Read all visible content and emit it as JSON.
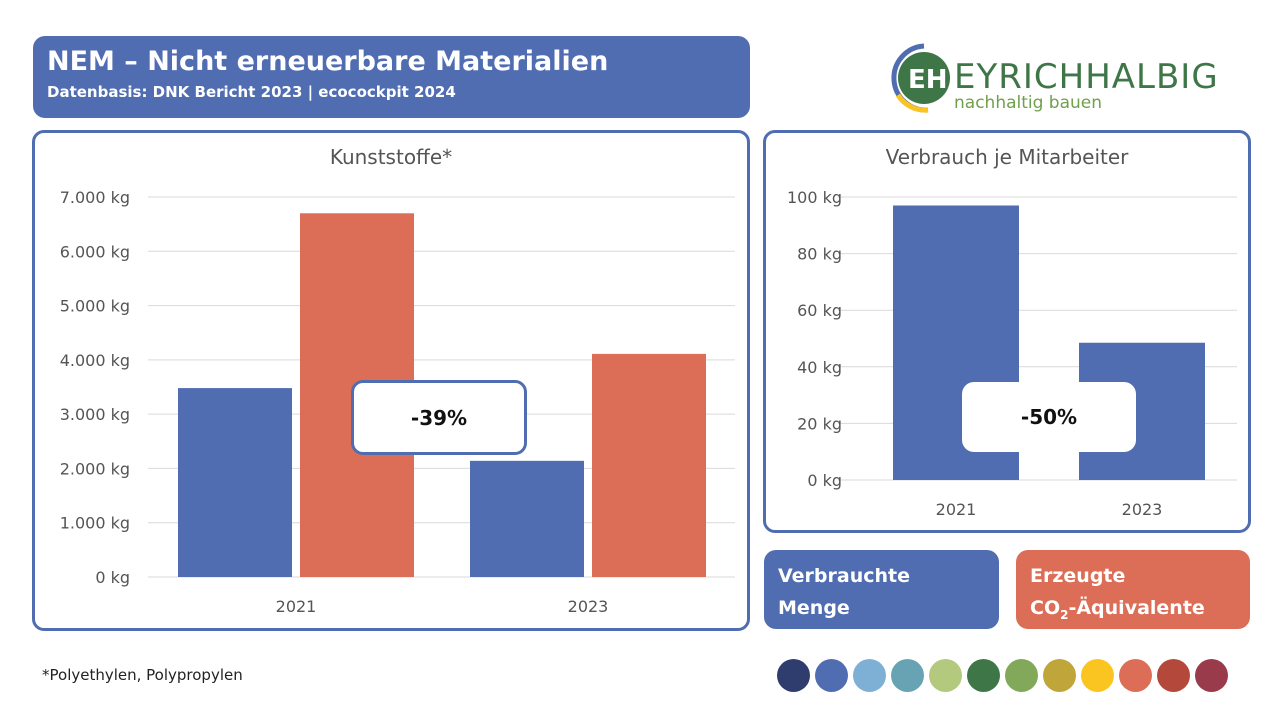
{
  "header": {
    "title": "NEM – Nicht erneuerbare Materialien",
    "subtitle": "Datenbasis: DNK Bericht 2023 | ecocockpit 2024"
  },
  "logo": {
    "text": "EYRICHHALBIG",
    "tagline": "nachhaltig bauen",
    "mark": "EH"
  },
  "colors": {
    "blue": "#4f6db0",
    "orange": "#dc6e57"
  },
  "chart_data": [
    {
      "type": "bar",
      "title": "Kunststoffe*",
      "categories": [
        "2021",
        "2023"
      ],
      "series": [
        {
          "name": "Verbrauchte Menge",
          "values": [
            3480,
            2140
          ]
        },
        {
          "name": "Erzeugte CO2-Äquivalente",
          "values": [
            6700,
            4110
          ]
        }
      ],
      "ylim": [
        0,
        7000
      ],
      "yticks": [
        "0 kg",
        "1.000 kg",
        "2.000 kg",
        "3.000 kg",
        "4.000 kg",
        "5.000 kg",
        "6.000 kg",
        "7.000 kg"
      ],
      "annotation": "-39%"
    },
    {
      "type": "bar",
      "title": "Verbrauch je Mitarbeiter",
      "categories": [
        "2021",
        "2023"
      ],
      "series": [
        {
          "name": "Verbrauchte Menge",
          "values": [
            97,
            48.5
          ]
        }
      ],
      "ylim": [
        0,
        100
      ],
      "yticks": [
        "0 kg",
        "20 kg",
        "40 kg",
        "60 kg",
        "80 kg",
        "100 kg"
      ],
      "annotation": "-50%"
    }
  ],
  "legend": {
    "blue_line1": "Verbrauchte",
    "blue_line2": "Menge",
    "orange_line1": "Erzeugte",
    "orange_line2_pre": "CO",
    "orange_sub": "2",
    "orange_line2_post": "-Äquivalente"
  },
  "footnote": "*Polyethylen, Polypropylen",
  "palette": [
    "#2f3d6e",
    "#4f6db0",
    "#7eb0d6",
    "#68a3b4",
    "#b2c97e",
    "#3f7648",
    "#82a85a",
    "#c0a63a",
    "#fbc521",
    "#dc6e57",
    "#b4483a",
    "#9a3b4c"
  ]
}
